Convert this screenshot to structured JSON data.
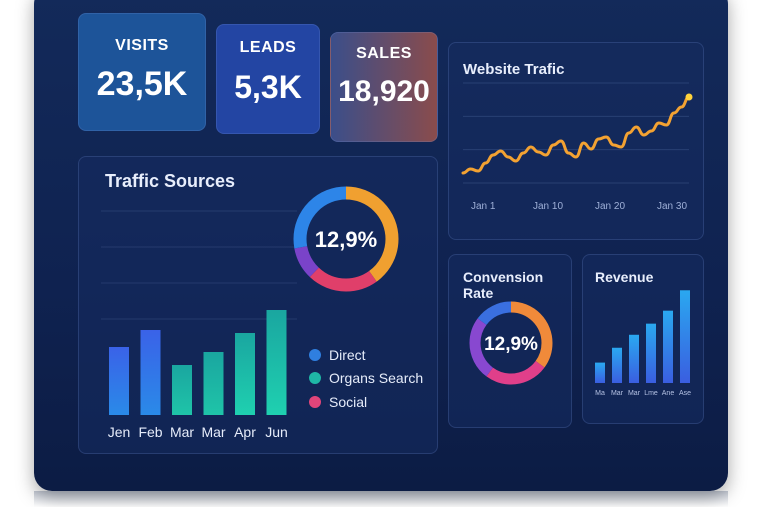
{
  "kpis": [
    {
      "label": "VISITS",
      "value": "23,5K",
      "color": "#1e5aa8"
    },
    {
      "label": "LEADS",
      "value": "5,3K",
      "color": "#2847a8"
    },
    {
      "label": "SALES",
      "value": "18,920",
      "color": "#8a4a4a"
    }
  ],
  "website_traffic": {
    "title": "Website Trafic",
    "xlabels": [
      "Jan 1",
      "Jan 10",
      "Jan 20",
      "Jan 30"
    ]
  },
  "traffic_sources": {
    "title": "Traffic Sources",
    "donut_value": "12,9%",
    "legend": [
      {
        "label": "Direct",
        "color": "#2f7fe0"
      },
      {
        "label": "Organs Search",
        "color": "#1fb7a6"
      },
      {
        "label": "Social",
        "color": "#e0457a"
      }
    ],
    "months": [
      "Jen",
      "Feb",
      "Mar",
      "Mar",
      "Apr",
      "Jun"
    ]
  },
  "conversion_rate": {
    "title": "Convension Rate",
    "value": "12,9%"
  },
  "revenue": {
    "title": "Revenue",
    "xlabels": [
      "Ma",
      "Mar",
      "Mar",
      "Lme",
      "Ane",
      "Ase"
    ]
  },
  "chart_data": [
    {
      "type": "line",
      "title": "Website Trafic",
      "x": [
        0,
        1,
        2,
        3,
        4,
        5,
        6,
        7,
        8,
        9,
        10,
        11,
        12,
        13,
        14,
        15,
        16,
        17,
        18,
        19,
        20,
        21,
        22,
        23,
        24,
        25,
        26,
        27,
        28,
        29,
        30
      ],
      "values": [
        10,
        14,
        12,
        20,
        28,
        32,
        26,
        22,
        30,
        36,
        31,
        28,
        38,
        42,
        30,
        26,
        40,
        34,
        44,
        46,
        38,
        36,
        50,
        56,
        48,
        52,
        60,
        58,
        70,
        76,
        86
      ],
      "tick_labels": [
        "Jan 1",
        "Jan 10",
        "Jan 20",
        "Jan 30"
      ],
      "ylim": [
        0,
        100
      ],
      "color": "#f3a232"
    },
    {
      "type": "bar",
      "title": "Traffic Sources",
      "categories": [
        "Jen",
        "Feb",
        "Mar",
        "Mar",
        "Apr",
        "Jun"
      ],
      "values": [
        68,
        85,
        50,
        63,
        82,
        105
      ],
      "ylim": [
        0,
        120
      ]
    },
    {
      "type": "pie",
      "title": "Traffic Sources",
      "center_label": "12,9%",
      "slices": [
        {
          "label": "Orange",
          "value": 40,
          "color": "#f0a030"
        },
        {
          "label": "Red",
          "value": 22,
          "color": "#e03f6a"
        },
        {
          "label": "Purple",
          "value": 10,
          "color": "#7a43c9"
        },
        {
          "label": "Blue",
          "value": 28,
          "color": "#2d85e8"
        }
      ]
    },
    {
      "type": "pie",
      "title": "Convension Rate",
      "center_label": "12,9%",
      "slices": [
        {
          "label": "Orange",
          "value": 35,
          "color": "#f08a3a"
        },
        {
          "label": "Pink",
          "value": 25,
          "color": "#e03f8a"
        },
        {
          "label": "Purple",
          "value": 25,
          "color": "#8848d0"
        },
        {
          "label": "Blue",
          "value": 15,
          "color": "#3a6fe0"
        }
      ]
    },
    {
      "type": "bar",
      "title": "Revenue",
      "categories": [
        "Ma",
        "Mar",
        "Mar",
        "Lme",
        "Ane",
        "Ase"
      ],
      "values": [
        22,
        38,
        52,
        64,
        78,
        100
      ],
      "ylim": [
        0,
        110
      ]
    }
  ]
}
